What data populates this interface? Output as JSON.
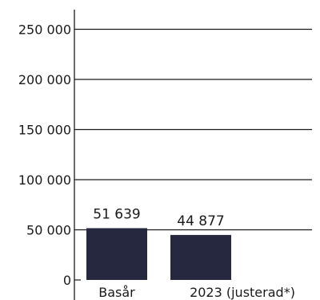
{
  "chart_data": {
    "type": "bar",
    "categories": [
      "Basår",
      "2023 (justerad*)"
    ],
    "values": [
      51639,
      44877
    ],
    "value_labels": [
      "51 639",
      "44 877"
    ],
    "yticks": [
      0,
      50000,
      100000,
      150000,
      200000,
      250000
    ],
    "ytick_labels": [
      "0",
      "50 000",
      "100 000",
      "150 000",
      "200 000",
      "250 000"
    ],
    "ylim": [
      0,
      260000
    ],
    "grid": "horizontal",
    "title": "",
    "xlabel": "",
    "ylabel": "",
    "colors": {
      "bar": "#262840",
      "axis": "#1a1a1a",
      "grid": "#1a1a1a"
    }
  }
}
